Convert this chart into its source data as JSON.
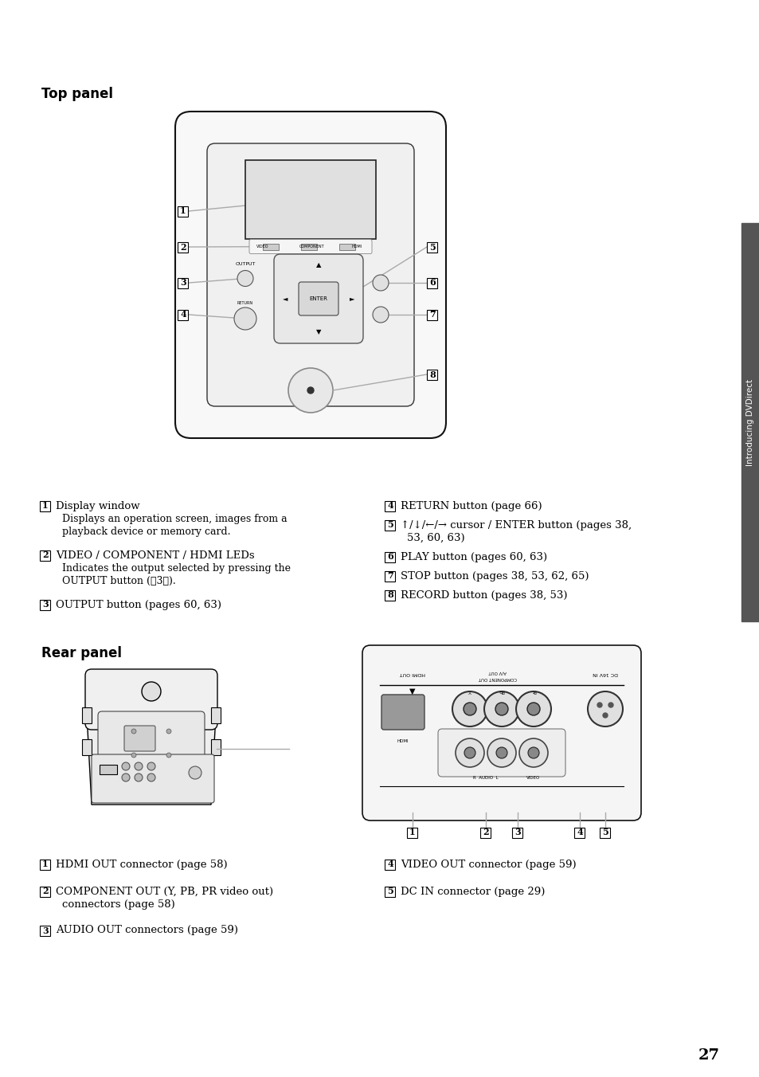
{
  "bg_color": "#ffffff",
  "title_top_panel": "Top panel",
  "title_rear_panel": "Rear panel",
  "page_number": "27",
  "sidebar_text": "Introducing DVDirect",
  "sidebar_color": "#555555",
  "top_desc_left": [
    {
      "num": "1",
      "title": "Display window",
      "sub": "Displays an operation screen, images from a\nplayback device or memory card."
    },
    {
      "num": "2",
      "title": "VIDEO / COMPONENT / HDMI LEDs",
      "sub": "Indicates the output selected by pressing the\nOUTPUT button (\u00033\u0003)."
    },
    {
      "num": "3",
      "title": "OUTPUT button (pages 60, 63)",
      "sub": ""
    }
  ],
  "top_desc_right": [
    {
      "num": "4",
      "title": "RETURN button (page 66)",
      "sub": ""
    },
    {
      "num": "5",
      "title": "↑/↓/←/→ cursor / ENTER button (pages 38,\n53, 60, 63)",
      "sub": ""
    },
    {
      "num": "6",
      "title": "PLAY button (pages 60, 63)",
      "sub": ""
    },
    {
      "num": "7",
      "title": "STOP button (pages 38, 53, 62, 65)",
      "sub": ""
    },
    {
      "num": "8",
      "title": "RECORD button (pages 38, 53)",
      "sub": ""
    }
  ],
  "rear_desc_left": [
    {
      "num": "1",
      "title": "HDMI OUT connector (page 58)",
      "sub": ""
    },
    {
      "num": "2",
      "title": "COMPONENT OUT (Y, PB, PR video out)",
      "sub2": "connectors (page 58)"
    },
    {
      "num": "3",
      "title": "AUDIO OUT connectors (page 59)",
      "sub": ""
    }
  ],
  "rear_desc_right": [
    {
      "num": "4",
      "title": "VIDEO OUT connector (page 59)",
      "sub": ""
    },
    {
      "num": "5",
      "title": "DC IN connector (page 29)",
      "sub": ""
    }
  ]
}
